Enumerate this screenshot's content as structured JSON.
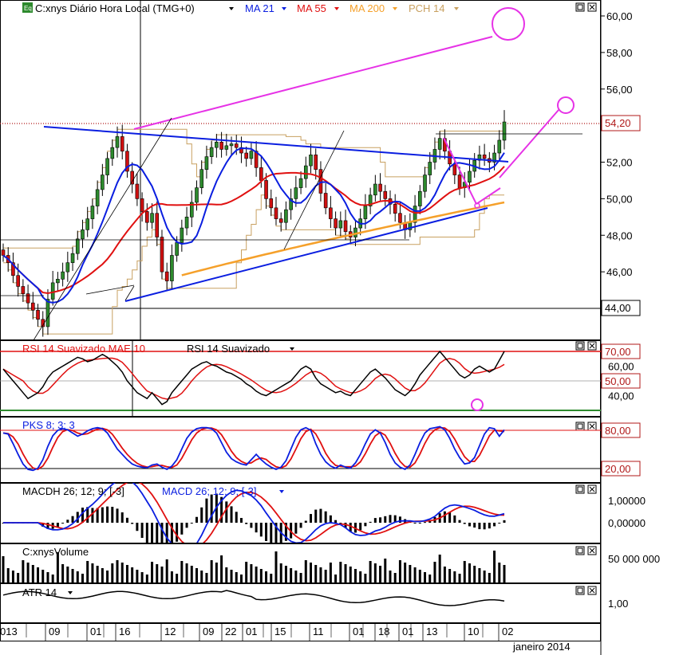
{
  "colors": {
    "blue": "#0a1ee0",
    "red": "#e01010",
    "orange": "#f5a02a",
    "tan": "#c8a060",
    "magenta": "#e632e6",
    "green": "#2d8a2d",
    "darkred": "#b01818",
    "gray": "#808080"
  },
  "icons": {
    "eq": "equity-icon",
    "arrow": "dropdown-arrow-icon",
    "restore": "restore-icon",
    "close": "close-icon"
  },
  "chart_data": [
    {
      "type": "candlestick",
      "title": "C:xnys Diário Hora Local (TMG+0)",
      "legend": [
        {
          "name": "MA 21",
          "color": "#0a1ee0"
        },
        {
          "name": "MA 55",
          "color": "#e01010"
        },
        {
          "name": "MA 200",
          "color": "#f5a02a"
        },
        {
          "name": "PCH 14",
          "color": "#c8a060"
        }
      ],
      "ylim": [
        42.6,
        60.9
      ],
      "ticks": [
        "60,00",
        "58,00",
        "56,00",
        "54,00",
        "52,00",
        "50,00",
        "48,00",
        "46,00",
        "44,00"
      ],
      "tick_values": [
        60,
        58,
        56,
        54,
        52,
        50,
        48,
        46,
        44
      ],
      "last_price": {
        "label": "54,20",
        "value": 54.2
      },
      "level_44": {
        "label": "44,00",
        "value": 44.0
      },
      "closes": [
        46.9,
        46.5,
        45.8,
        45.2,
        44.8,
        44.3,
        43.9,
        43.4,
        43.0,
        44.5,
        45.4,
        45.6,
        46.0,
        46.5,
        47.0,
        47.8,
        48.3,
        48.9,
        49.6,
        50.5,
        51.3,
        52.2,
        52.8,
        53.4,
        52.6,
        51.5,
        50.8,
        50.0,
        49.3,
        48.7,
        49.2,
        47.9,
        46.0,
        45.5,
        46.9,
        47.6,
        48.4,
        49.0,
        49.8,
        50.6,
        51.6,
        52.3,
        52.8,
        53.1,
        52.7,
        52.9,
        53.0,
        52.8,
        52.5,
        52.2,
        52.6,
        51.7,
        51.0,
        50.0,
        49.5,
        48.9,
        48.7,
        49.4,
        50.0,
        50.6,
        51.1,
        51.8,
        52.4,
        51.6,
        50.3,
        49.5,
        48.9,
        48.4,
        48.8,
        48.2,
        47.9,
        48.4,
        48.9,
        49.6,
        50.2,
        50.8,
        50.4,
        50.0,
        49.7,
        49.2,
        48.7,
        48.3,
        48.7,
        49.6,
        50.4,
        51.3,
        52.0,
        52.7,
        53.3,
        52.6,
        51.9,
        51.3,
        50.6,
        50.9,
        51.5,
        52.1,
        52.4,
        52.2,
        52.0,
        52.5,
        53.2,
        54.2
      ]
    },
    {
      "type": "line",
      "title": "RSI 14 Suavizado MAE 10",
      "series": [
        {
          "name": "RSI 14 Suavizado"
        },
        {
          "name": "RSI 14 Suavizado MAE 10"
        }
      ],
      "ticks": [
        "70,00",
        "60,00",
        "50,00",
        "40,00"
      ],
      "tick_values": [
        70,
        60,
        50,
        40
      ],
      "ylim": [
        28,
        76
      ],
      "rsi": [
        58,
        54,
        50,
        46,
        42,
        38,
        40,
        42,
        46,
        52,
        56,
        58,
        60,
        62,
        64,
        66,
        65,
        63,
        64,
        66,
        68,
        66,
        63,
        60,
        56,
        50,
        46,
        42,
        40,
        38,
        42,
        38,
        34,
        36,
        42,
        46,
        50,
        54,
        58,
        60,
        62,
        63,
        61,
        60,
        58,
        56,
        55,
        53,
        51,
        48,
        46,
        43,
        41,
        40,
        42,
        44,
        46,
        48,
        50,
        54,
        58,
        60,
        58,
        52,
        48,
        46,
        44,
        42,
        43,
        41,
        40,
        44,
        48,
        52,
        56,
        58,
        55,
        52,
        48,
        44,
        42,
        40,
        43,
        48,
        54,
        58,
        62,
        66,
        70,
        66,
        62,
        58,
        54,
        52,
        54,
        58,
        60,
        58,
        56,
        58,
        64,
        70
      ]
    },
    {
      "type": "line",
      "title": "PKS 8; 3; 3",
      "ticks": [
        "80,00",
        "20,00"
      ],
      "tick_values": [
        80,
        20
      ],
      "ylim": [
        0,
        100
      ],
      "k": [
        80,
        78,
        60,
        40,
        22,
        12,
        10,
        14,
        30,
        55,
        75,
        85,
        88,
        86,
        80,
        74,
        78,
        84,
        88,
        90,
        88,
        80,
        65,
        50,
        40,
        30,
        22,
        18,
        16,
        15,
        20,
        22,
        16,
        12,
        18,
        30,
        50,
        70,
        82,
        88,
        90,
        90,
        88,
        80,
        62,
        44,
        32,
        26,
        22,
        20,
        30,
        40,
        30,
        22,
        16,
        12,
        16,
        28,
        50,
        72,
        86,
        90,
        85,
        60,
        40,
        26,
        18,
        14,
        20,
        16,
        14,
        24,
        40,
        60,
        78,
        86,
        80,
        62,
        40,
        24,
        16,
        12,
        20,
        40,
        62,
        80,
        88,
        90,
        92,
        86,
        70,
        50,
        34,
        22,
        24,
        34,
        56,
        78,
        90,
        88,
        74,
        86
      ]
    },
    {
      "type": "bar",
      "title": "MACDH 26; 12; 9; [-3]",
      "series": [
        {
          "name": "MACDH 26; 12; 9; [-3]"
        },
        {
          "name": "MACD 26; 12; 9; [-3]"
        }
      ],
      "ticks": [
        "1,00000",
        "0,00000"
      ],
      "tick_values": [
        1,
        0
      ],
      "ylim": [
        -1.45,
        1.5
      ]
    },
    {
      "type": "bar",
      "title": "C:xnysVolume",
      "ticks": [
        "50 000 000"
      ],
      "tick_values": [
        50000000
      ],
      "ylim": [
        0,
        70000000
      ]
    },
    {
      "type": "line",
      "title": "ATR 14",
      "ticks": [
        "1,00"
      ],
      "tick_values": [
        1.0
      ],
      "ylim": [
        0.55,
        1.45
      ]
    }
  ],
  "xaxis": {
    "labels": [
      "013",
      "09",
      "01",
      "16",
      "12",
      "09",
      "22",
      "01",
      "15",
      "11",
      "01",
      "18",
      "01",
      "13",
      "10",
      "02"
    ],
    "period": "janeiro 2014"
  }
}
